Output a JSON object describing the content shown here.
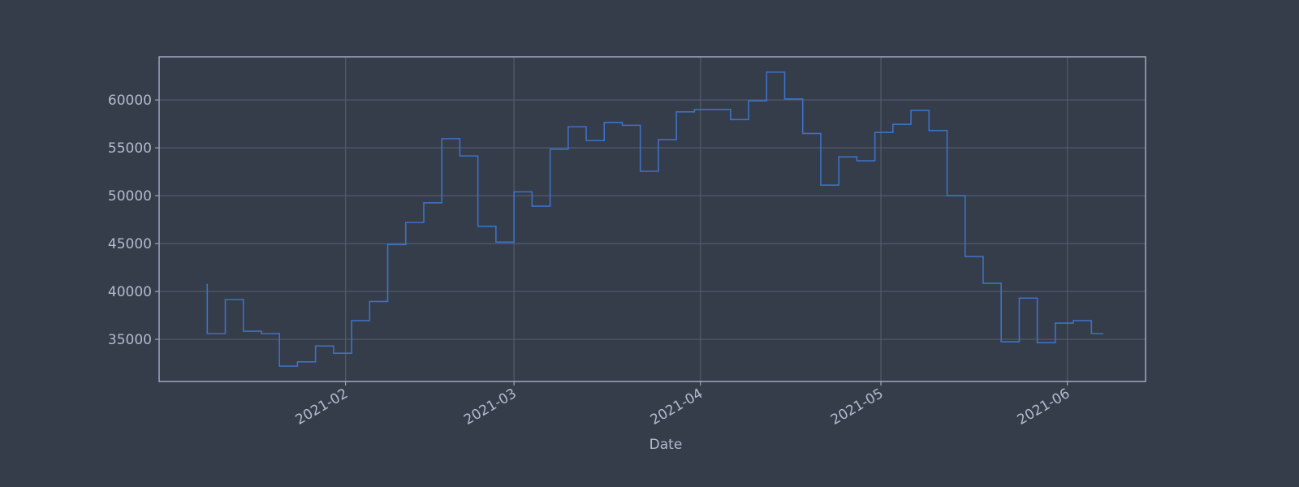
{
  "chart_data": {
    "type": "line",
    "drawstyle": "steps-pre",
    "x_label": "Date",
    "x": [
      "2021-01-09",
      "2021-01-12",
      "2021-01-15",
      "2021-01-18",
      "2021-01-21",
      "2021-01-24",
      "2021-01-27",
      "2021-01-30",
      "2021-02-02",
      "2021-02-05",
      "2021-02-08",
      "2021-02-11",
      "2021-02-14",
      "2021-02-17",
      "2021-02-20",
      "2021-02-23",
      "2021-02-26",
      "2021-03-01",
      "2021-03-04",
      "2021-03-07",
      "2021-03-10",
      "2021-03-13",
      "2021-03-16",
      "2021-03-19",
      "2021-03-22",
      "2021-03-25",
      "2021-03-28",
      "2021-03-31",
      "2021-04-03",
      "2021-04-06",
      "2021-04-09",
      "2021-04-12",
      "2021-04-15",
      "2021-04-18",
      "2021-04-21",
      "2021-04-24",
      "2021-04-27",
      "2021-04-30",
      "2021-05-03",
      "2021-05-06",
      "2021-05-09",
      "2021-05-12",
      "2021-05-15",
      "2021-05-18",
      "2021-05-21",
      "2021-05-24",
      "2021-05-27",
      "2021-05-30",
      "2021-06-02",
      "2021-06-05",
      "2021-06-07"
    ],
    "series": [
      {
        "color": "#3d72c6",
        "values": [
          40800,
          35600,
          39150,
          35850,
          35600,
          32200,
          32650,
          34300,
          33550,
          36950,
          38950,
          44900,
          47200,
          49250,
          55950,
          54150,
          46800,
          45150,
          50400,
          48900,
          54850,
          57200,
          55750,
          57650,
          57350,
          52550,
          55850,
          58750,
          59000,
          59000,
          57950,
          59900,
          62900,
          60100,
          56500,
          51100,
          54050,
          53650,
          56600,
          57450,
          58900,
          56800,
          50000,
          43650,
          40850,
          34750,
          39300,
          34650,
          36700,
          36950,
          35600
        ]
      }
    ],
    "xlim": [
      "2021-01-01",
      "2021-06-14"
    ],
    "xticks": [
      {
        "value": "2021-02-01",
        "label": "2021-02"
      },
      {
        "value": "2021-03-01",
        "label": "2021-03"
      },
      {
        "value": "2021-04-01",
        "label": "2021-04"
      },
      {
        "value": "2021-05-01",
        "label": "2021-05"
      },
      {
        "value": "2021-06-01",
        "label": "2021-06"
      }
    ],
    "ylim": [
      30600,
      64500
    ],
    "yticks": [
      35000,
      40000,
      45000,
      50000,
      55000,
      60000
    ],
    "grid": true
  }
}
